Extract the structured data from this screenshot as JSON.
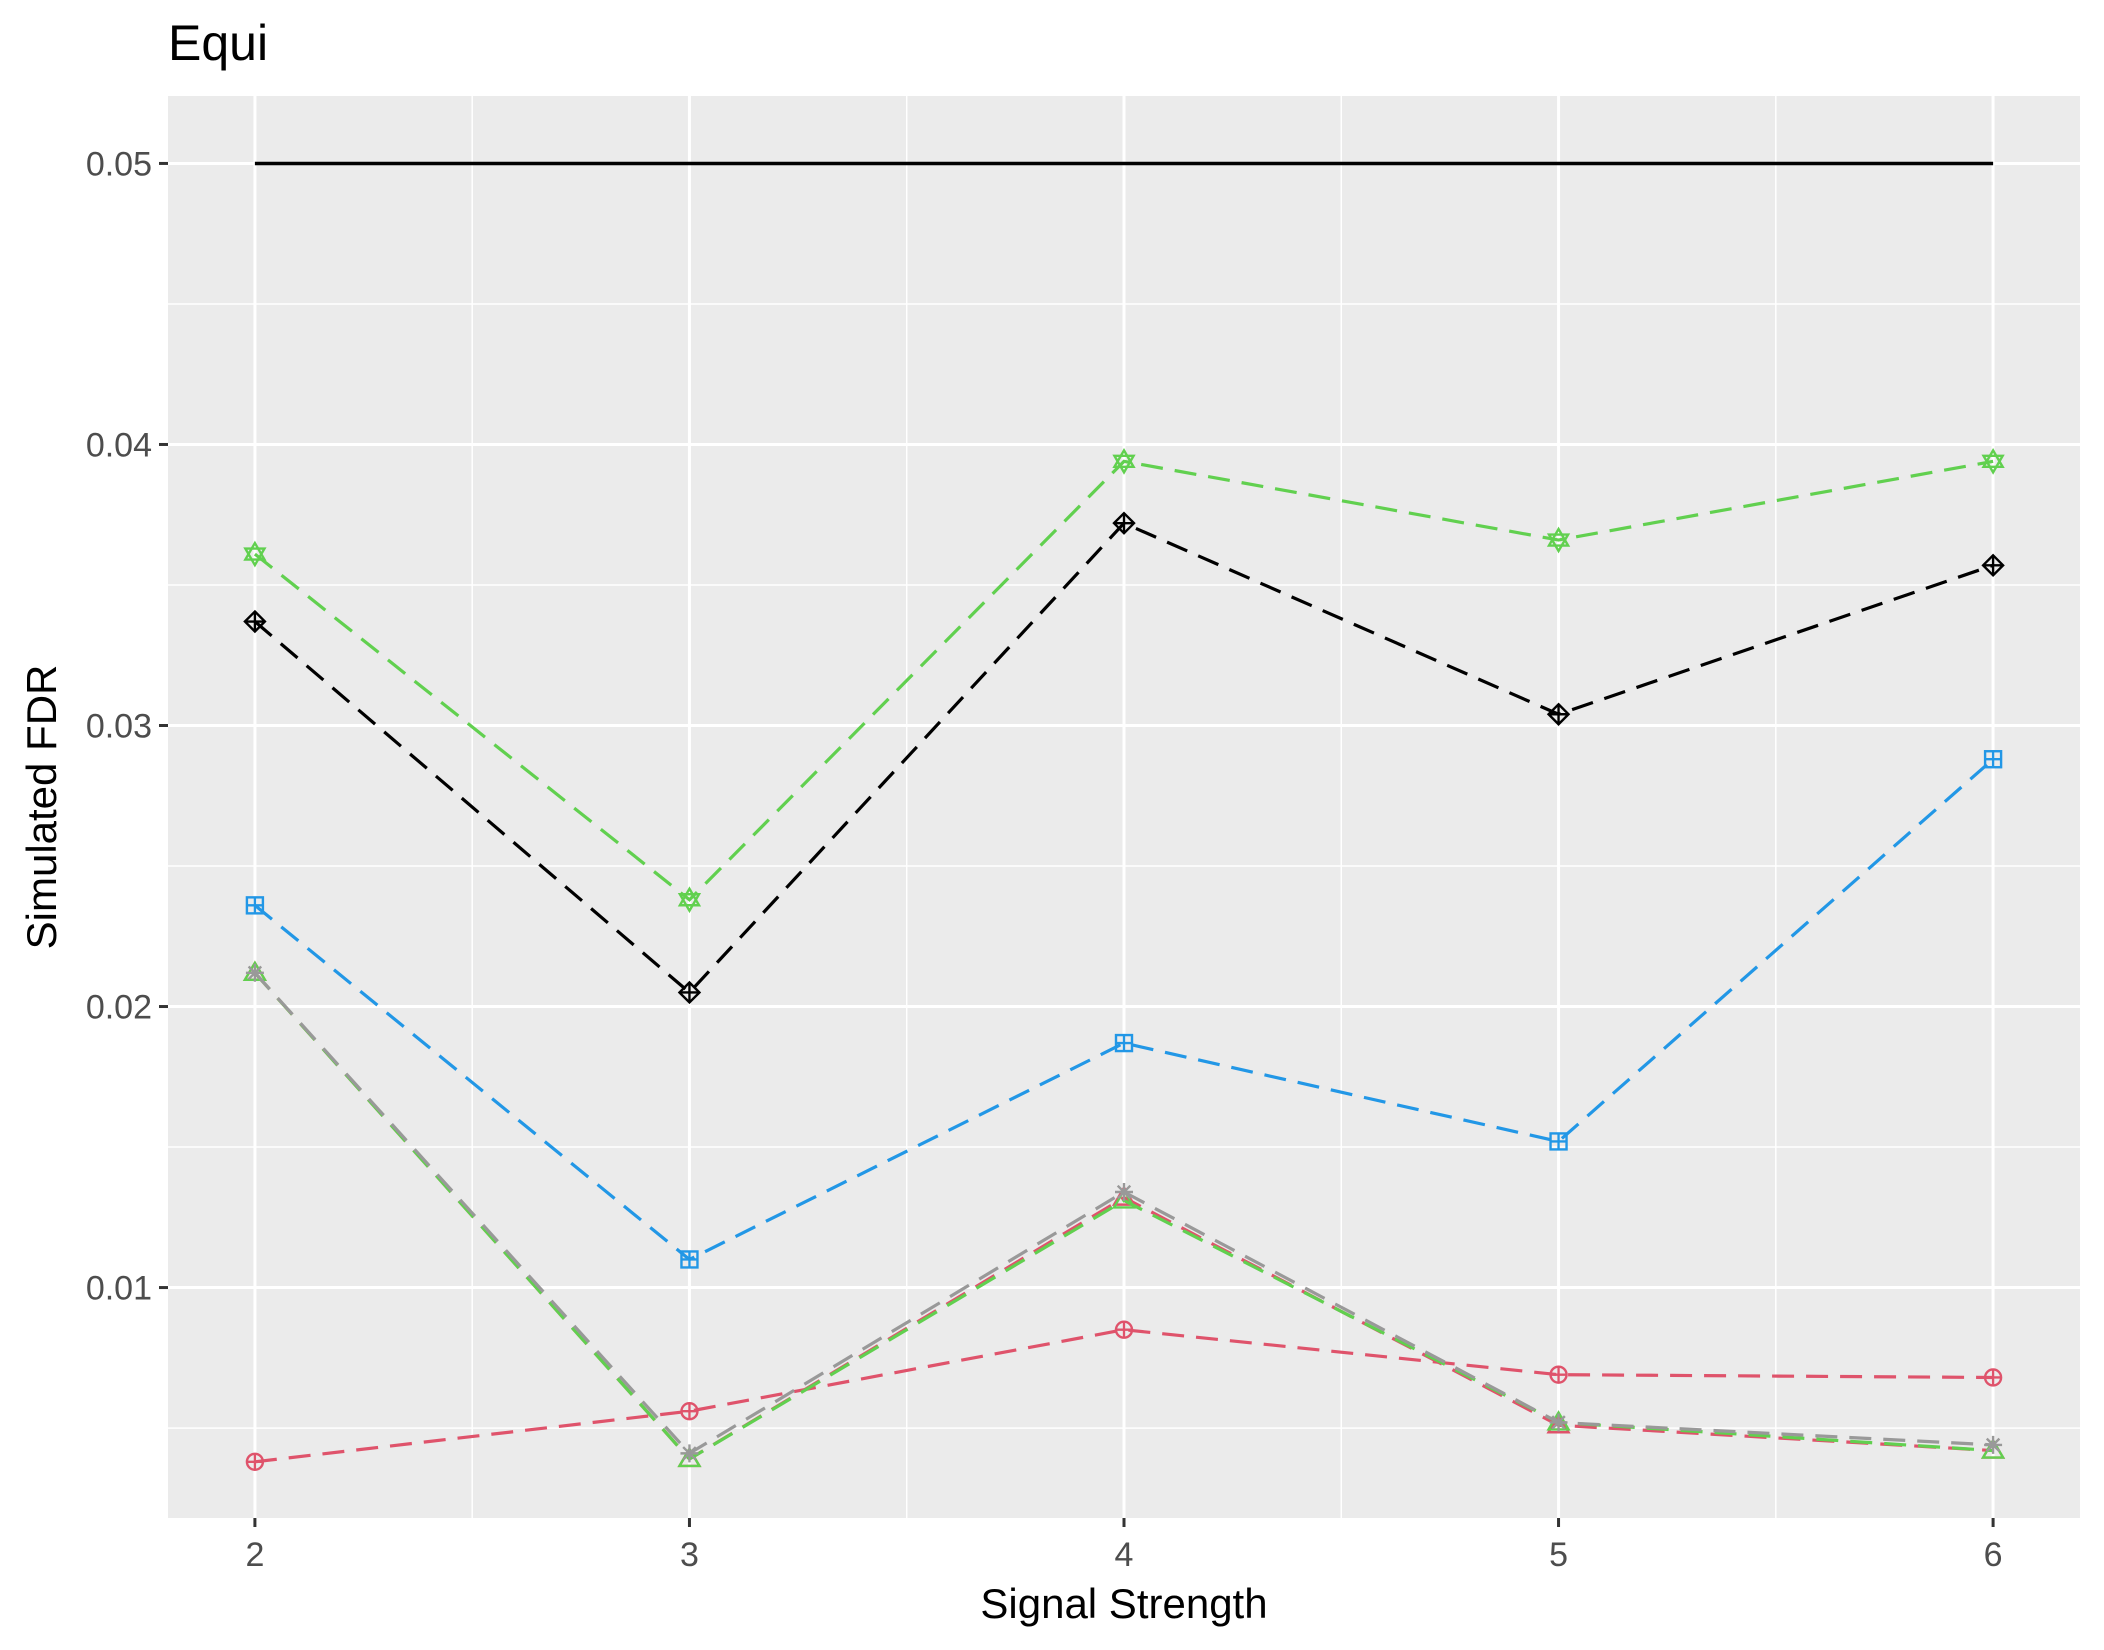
{
  "chart_data": {
    "type": "line",
    "title": "Equi",
    "xlabel": "Signal Strength",
    "ylabel": "Simulated FDR",
    "x": [
      2,
      3,
      4,
      5,
      6
    ],
    "x_ticks": [
      "2",
      "3",
      "4",
      "5",
      "6"
    ],
    "y_ticks": [
      "0.01",
      "0.02",
      "0.03",
      "0.04",
      "0.05"
    ],
    "xlim": [
      1.8,
      6.2
    ],
    "ylim": [
      0.0018,
      0.0524
    ],
    "grid": true,
    "legend": "none",
    "background_color": "#ebebeb",
    "reference_line": {
      "y": 0.05,
      "color": "#000000"
    },
    "series": [
      {
        "color": "#df536b",
        "marker": "circle-plus-icon",
        "values": [
          0.0038,
          0.0056,
          0.0085,
          0.0069,
          0.0068
        ]
      },
      {
        "color": "#df536b",
        "marker": "triangle-icon",
        "values": [
          0.0212,
          0.0039,
          0.0132,
          0.0051,
          0.0042
        ]
      },
      {
        "color": "#61d04f",
        "marker": "triangle-icon",
        "values": [
          0.0212,
          0.0039,
          0.0131,
          0.0052,
          0.0042
        ]
      },
      {
        "color": "#999999",
        "marker": "star-icon",
        "values": [
          0.0212,
          0.0041,
          0.0134,
          0.0052,
          0.0044
        ]
      },
      {
        "color": "#2297e6",
        "marker": "square-plus-icon",
        "values": [
          0.0236,
          0.011,
          0.0187,
          0.0152,
          0.0288
        ]
      },
      {
        "color": "#000000",
        "marker": "diamond-plus-icon",
        "values": [
          0.0337,
          0.0205,
          0.0372,
          0.0304,
          0.0357
        ]
      },
      {
        "color": "#61d04f",
        "marker": "star-of-david-icon",
        "values": [
          0.0361,
          0.0238,
          0.0394,
          0.0366,
          0.0394
        ]
      }
    ]
  }
}
